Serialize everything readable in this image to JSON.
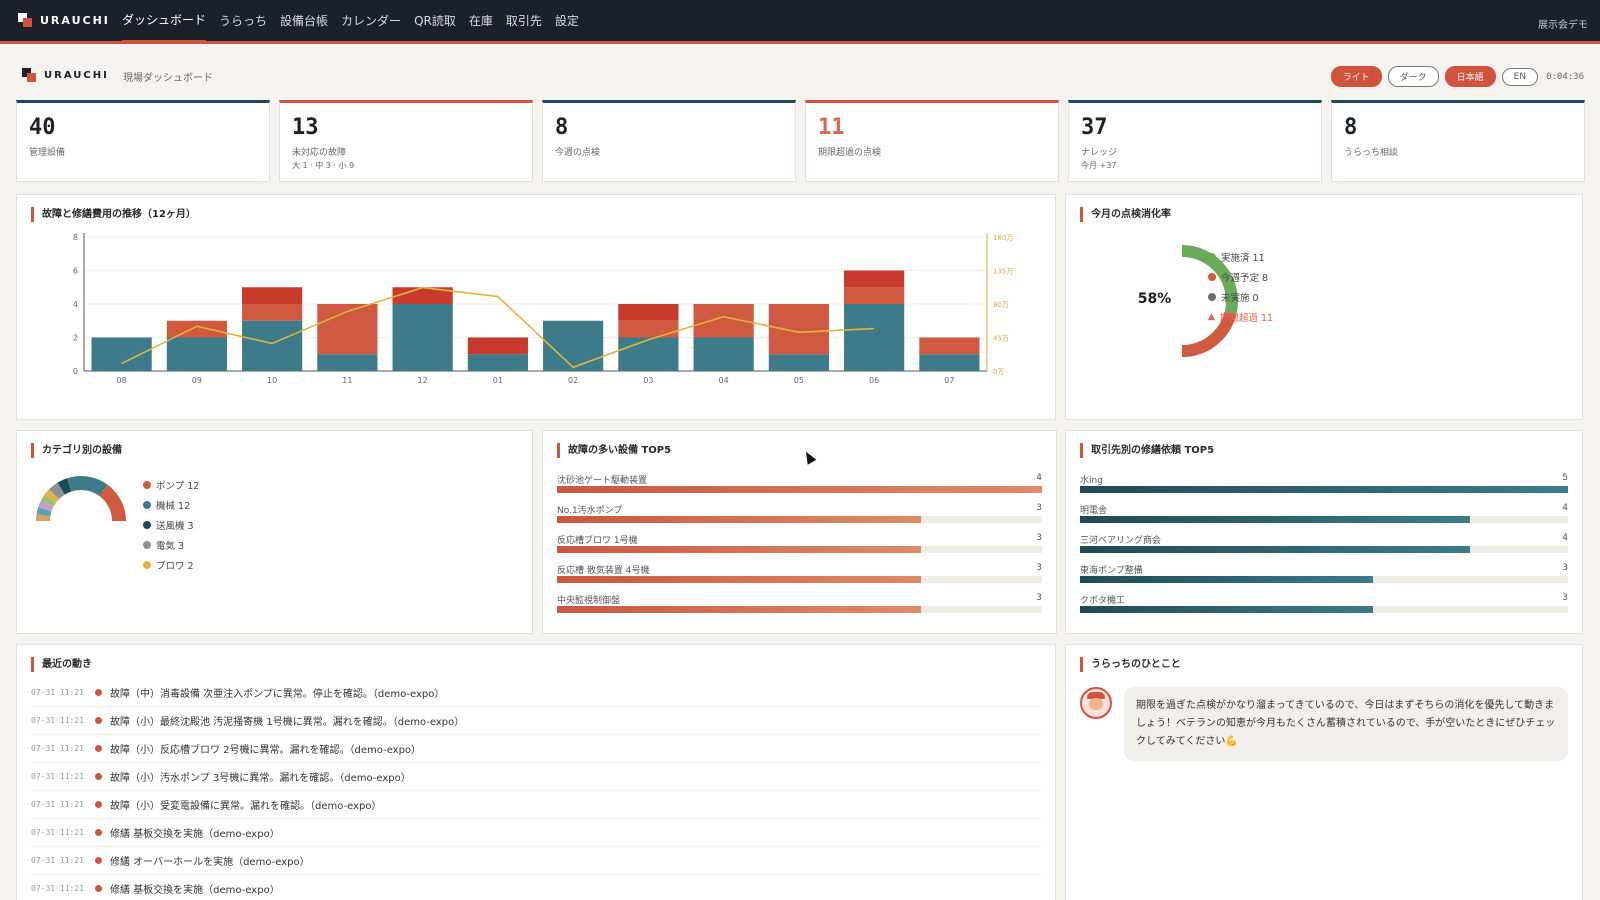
{
  "topbar": {
    "brand": "URAUCHI",
    "nav": [
      "ダッシュボード",
      "うらっち",
      "設備台帳",
      "カレンダー",
      "QR読取",
      "在庫",
      "取引先",
      "設定"
    ],
    "mode": "展示会デモ"
  },
  "subheader": {
    "brand": "URAUCHI",
    "crumb": "現場ダッシュボード",
    "buttons": {
      "light": "ライト",
      "dark": "ダーク",
      "ja": "日本語",
      "en": "EN"
    },
    "clock": "0:04:36"
  },
  "kpis": [
    {
      "value": "40",
      "label": "管理設備",
      "sub": ""
    },
    {
      "value": "13",
      "label": "未対応の故障",
      "sub": "大 1 · 中 3 · 小 9"
    },
    {
      "value": "8",
      "label": "今週の点検",
      "sub": ""
    },
    {
      "value": "11",
      "label": "期限超過の点検",
      "sub": ""
    },
    {
      "value": "37",
      "label": "ナレッジ",
      "sub": "今月 +37"
    },
    {
      "value": "8",
      "label": "うらっち相談",
      "sub": ""
    }
  ],
  "trend": {
    "title": "故障と修繕費用の推移（12ヶ月）"
  },
  "chart_data": {
    "type": "bar",
    "categories": [
      "08",
      "09",
      "10",
      "11",
      "12",
      "01",
      "02",
      "03",
      "04",
      "05",
      "06",
      "07"
    ],
    "series": [
      {
        "name": "",
        "color": "#3d7b8a",
        "values": [
          2,
          2,
          3,
          1,
          4,
          1,
          3,
          2,
          2,
          1,
          4,
          1
        ]
      },
      {
        "name": "",
        "color": "#cf5a40",
        "values": [
          0,
          1,
          1,
          3,
          0,
          0,
          0,
          1,
          2,
          3,
          1,
          1
        ]
      },
      {
        "name": "",
        "color": "#c73a2c",
        "values": [
          0,
          0,
          1,
          0,
          1,
          1,
          0,
          1,
          0,
          0,
          1,
          0
        ]
      }
    ],
    "line": {
      "name": "",
      "color": "#e2b43f",
      "values": [
        10,
        60,
        37,
        80,
        112,
        100,
        5,
        42,
        73,
        52,
        57,
        null
      ]
    },
    "ylim": [
      0,
      8
    ],
    "yticks": [
      "0",
      "2",
      "4",
      "6",
      "8"
    ],
    "y2lim": [
      0,
      180
    ],
    "y2ticks": [
      "0万",
      "45万",
      "90万",
      "135万",
      "180万"
    ]
  },
  "monthly": {
    "title": "今月の点検消化率",
    "percent": "58%",
    "legend": [
      {
        "label": "実施済 11",
        "color": "#6aab5a"
      },
      {
        "label": "今週予定 8",
        "color": "#cf5a40"
      },
      {
        "label": "未実施 0",
        "color": "#6c6c6c"
      },
      {
        "label": "期限超過 11",
        "color": "#e0644f"
      }
    ],
    "donut": [
      11,
      8,
      0
    ]
  },
  "category": {
    "title": "カテゴリ別の設備",
    "items": [
      {
        "label": "ポンプ 12",
        "color": "#cf5a40",
        "value": 12
      },
      {
        "label": "機械 12",
        "color": "#3d7b8a",
        "value": 12
      },
      {
        "label": "送風機 3",
        "color": "#1f4a55",
        "value": 3
      },
      {
        "label": "電気 3",
        "color": "#8a9296",
        "value": 3
      },
      {
        "label": "ブロワ 2",
        "color": "#e2b43f",
        "value": 2
      }
    ],
    "others": [
      {
        "color": "#9fbf6e",
        "value": 2
      },
      {
        "color": "#c99ad6",
        "value": 2
      },
      {
        "color": "#5aa0b6",
        "value": 2
      },
      {
        "color": "#d6a45b",
        "value": 2
      }
    ]
  },
  "failures": {
    "title": "故障の多い設備 TOP5",
    "items": [
      {
        "name": "沈砂池ゲート駆動装置",
        "count": "4",
        "ratio": 1.0
      },
      {
        "name": "No.1汚水ポンプ",
        "count": "3",
        "ratio": 0.75
      },
      {
        "name": "反応槽ブロワ 1号機",
        "count": "3",
        "ratio": 0.75
      },
      {
        "name": "反応槽 散気装置 4号機",
        "count": "3",
        "ratio": 0.75
      },
      {
        "name": "中央監視制御盤",
        "count": "3",
        "ratio": 0.75
      }
    ]
  },
  "vendors": {
    "title": "取引先別の修繕依頼 TOP5",
    "items": [
      {
        "name": "水ing",
        "count": "5",
        "ratio": 1.0
      },
      {
        "name": "明電舎",
        "count": "4",
        "ratio": 0.8
      },
      {
        "name": "三河ベアリング商会",
        "count": "4",
        "ratio": 0.8
      },
      {
        "name": "東海ポンプ整備",
        "count": "3",
        "ratio": 0.6
      },
      {
        "name": "クボタ機工",
        "count": "3",
        "ratio": 0.6
      }
    ]
  },
  "activity": {
    "title": "最近の動き",
    "items": [
      {
        "time": "07-31 11:21",
        "text": "故障（中）消毒設備 次亜注入ポンプに異常。停止を確認。（demo-expo）"
      },
      {
        "time": "07-31 11:21",
        "text": "故障（小）最終沈殿池 汚泥掻寄機 1号機に異常。漏れを確認。（demo-expo）"
      },
      {
        "time": "07-31 11:21",
        "text": "故障（小）反応槽ブロワ 2号機に異常。漏れを確認。（demo-expo）"
      },
      {
        "time": "07-31 11:21",
        "text": "故障（小）汚水ポンプ 3号機に異常。漏れを確認。（demo-expo）"
      },
      {
        "time": "07-31 11:21",
        "text": "故障（小）受変電設備に異常。漏れを確認。（demo-expo）"
      },
      {
        "time": "07-31 11:21",
        "text": "修繕 基板交換を実施（demo-expo）"
      },
      {
        "time": "07-31 11:21",
        "text": "修繕 オーバーホールを実施（demo-expo）"
      },
      {
        "time": "07-31 11:21",
        "text": "修繕 基板交換を実施（demo-expo）"
      }
    ]
  },
  "uracchi": {
    "title": "うらっちのひとこと",
    "message": "期限を過ぎた点検がかなり溜まってきているので、今日はまずそちらの消化を優先して動きましょう！ベテランの知恵が今月もたくさん蓄積されているので、手が空いたときにぜひチェックしてみてください💪"
  }
}
